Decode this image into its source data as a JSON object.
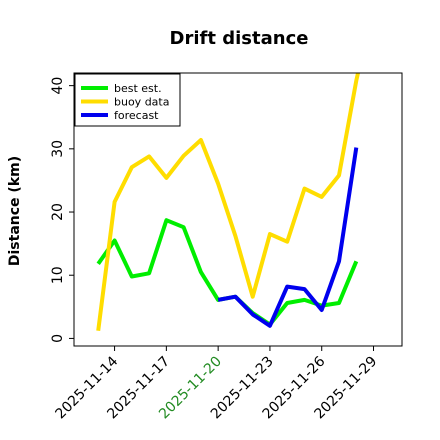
{
  "chart_data": {
    "type": "line",
    "title": "Drift distance",
    "ylabel": "Distance (km)",
    "xlabel": "",
    "ylim": [
      -1.2,
      42
    ],
    "yticks": [
      0,
      10,
      20,
      30,
      40
    ],
    "xtick_labels": [
      {
        "label": "2025-11-14",
        "color": "#000000"
      },
      {
        "label": "2025-11-17",
        "color": "#000000"
      },
      {
        "label": "2025-11-20",
        "color": "#228B22"
      },
      {
        "label": "2025-11-23",
        "color": "#000000"
      },
      {
        "label": "2025-11-26",
        "color": "#000000"
      },
      {
        "label": "2025-11-29",
        "color": "#000000"
      }
    ],
    "xtick_positions": [
      13.95,
      16.95,
      19.95,
      22.95,
      25.95,
      28.95
    ],
    "xlim": [
      11.6,
      30.6
    ],
    "legend_placement": "top-left",
    "grid": false,
    "series": [
      {
        "name": "best est.",
        "color": "#00ee00",
        "x": [
          13.0,
          13.95,
          14.95,
          15.95,
          16.95,
          17.95,
          18.95,
          19.95,
          20.95,
          21.95,
          22.95,
          23.95,
          24.95,
          25.95,
          26.95,
          27.95
        ],
        "y": [
          11.8,
          15.5,
          9.8,
          10.3,
          18.7,
          17.6,
          10.5,
          6.1,
          6.6,
          4.0,
          2.2,
          5.6,
          6.1,
          5.2,
          5.6,
          12.2
        ]
      },
      {
        "name": "buoy data",
        "color": "#ffdd00",
        "x": [
          13.0,
          13.95,
          14.95,
          15.95,
          16.95,
          17.95,
          18.95,
          19.95,
          20.95,
          21.95,
          22.95,
          23.95,
          24.95,
          25.95,
          26.95,
          27.95,
          28.05
        ],
        "y": [
          1.2,
          21.6,
          27.1,
          28.8,
          25.4,
          28.9,
          31.4,
          24.5,
          16.2,
          6.6,
          16.5,
          15.3,
          23.7,
          22.4,
          25.8,
          40.8,
          42.0
        ]
      },
      {
        "name": "forecast",
        "color": "#0000ee",
        "x": [
          19.95,
          20.95,
          21.95,
          22.95,
          23.95,
          24.95,
          25.95,
          26.95,
          27.95
        ],
        "y": [
          6.1,
          6.6,
          3.8,
          2.0,
          8.2,
          7.8,
          4.5,
          12.2,
          30.2
        ]
      }
    ]
  }
}
